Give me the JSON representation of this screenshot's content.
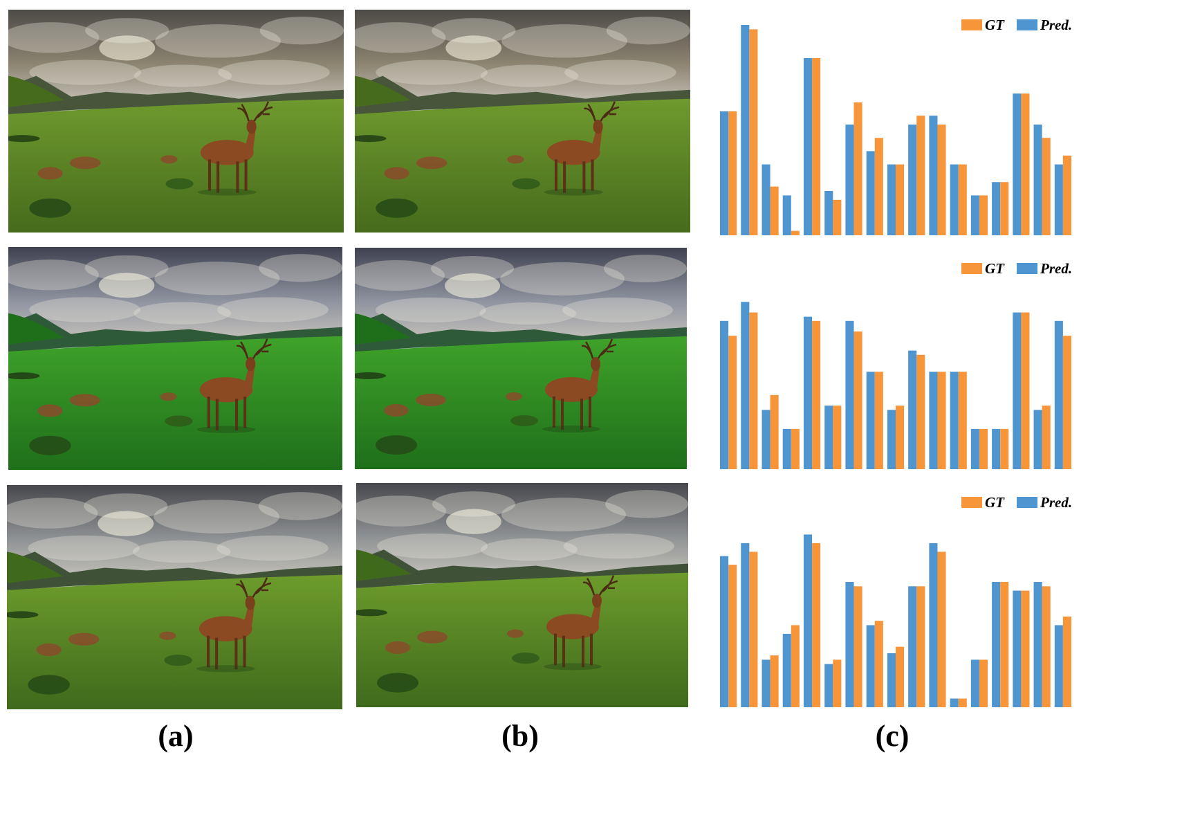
{
  "captions": {
    "a": "(a)",
    "b": "(b)",
    "c": "(c)"
  },
  "photo_variants": [
    {
      "row": 1,
      "column": "a",
      "depicts": "deer-landscape",
      "tone": "warm"
    },
    {
      "row": 1,
      "column": "b",
      "depicts": "deer-landscape",
      "tone": "warm-matched"
    },
    {
      "row": 2,
      "column": "a",
      "depicts": "deer-landscape",
      "tone": "vivid-green"
    },
    {
      "row": 2,
      "column": "b",
      "depicts": "deer-landscape",
      "tone": "vivid-green-matched"
    },
    {
      "row": 3,
      "column": "a",
      "depicts": "deer-landscape",
      "tone": "neutral"
    },
    {
      "row": 3,
      "column": "b",
      "depicts": "deer-landscape",
      "tone": "neutral-matched"
    }
  ],
  "colors": {
    "gt": "#f7953b",
    "pred": "#4f95cf",
    "tone_warm": {
      "sky": "#8c8370",
      "sky_top": "#4d4b47",
      "grass": "#6f9a2e",
      "grass_dark": "#466b1c",
      "hill": "#47563a"
    },
    "tone_vivid": {
      "sky": "#8f93a0",
      "sky_top": "#3f4150",
      "grass": "#3fa32a",
      "grass_dark": "#1f6f1a",
      "hill": "#2f5a3a"
    },
    "tone_neutral": {
      "sky": "#8f9294",
      "sky_top": "#47484d",
      "grass": "#6d9c2c",
      "grass_dark": "#3f6a1c",
      "hill": "#3f5238"
    }
  },
  "chart_data": [
    {
      "type": "bar",
      "legend": [
        {
          "name": "GT"
        },
        {
          "name": "Pred."
        }
      ],
      "legend_position": "top-right",
      "ylim": [
        0,
        100
      ],
      "grid": false,
      "axes_visible": false,
      "series": [
        {
          "name": "Pred.",
          "values": [
            56,
            95,
            32,
            18,
            80,
            20,
            50,
            38,
            32,
            50,
            54,
            32,
            18,
            24,
            64,
            50,
            32
          ]
        },
        {
          "name": "GT",
          "values": [
            56,
            93,
            22,
            2,
            80,
            16,
            60,
            44,
            32,
            54,
            50,
            32,
            18,
            24,
            64,
            44,
            36
          ]
        }
      ]
    },
    {
      "type": "bar",
      "legend": [
        {
          "name": "GT"
        },
        {
          "name": "Pred."
        }
      ],
      "legend_position": "top-right",
      "ylim": [
        0,
        100
      ],
      "grid": false,
      "axes_visible": false,
      "series": [
        {
          "name": "Pred.",
          "values": [
            70,
            79,
            28,
            19,
            72,
            30,
            70,
            46,
            28,
            56,
            46,
            46,
            19,
            19,
            74,
            28,
            70
          ]
        },
        {
          "name": "GT",
          "values": [
            63,
            74,
            35,
            19,
            70,
            30,
            65,
            46,
            30,
            54,
            46,
            46,
            19,
            19,
            74,
            30,
            63
          ]
        }
      ]
    },
    {
      "type": "bar",
      "legend": [
        {
          "name": "GT"
        },
        {
          "name": "Pred."
        }
      ],
      "legend_position": "top-right",
      "ylim": [
        0,
        100
      ],
      "grid": false,
      "axes_visible": false,
      "series": [
        {
          "name": "Pred.",
          "values": [
            70,
            76,
            22,
            34,
            80,
            20,
            58,
            38,
            25,
            56,
            76,
            4,
            22,
            58,
            54,
            58,
            38
          ]
        },
        {
          "name": "GT",
          "values": [
            66,
            72,
            24,
            38,
            76,
            22,
            56,
            40,
            28,
            56,
            72,
            4,
            22,
            58,
            54,
            56,
            42
          ]
        }
      ]
    }
  ]
}
